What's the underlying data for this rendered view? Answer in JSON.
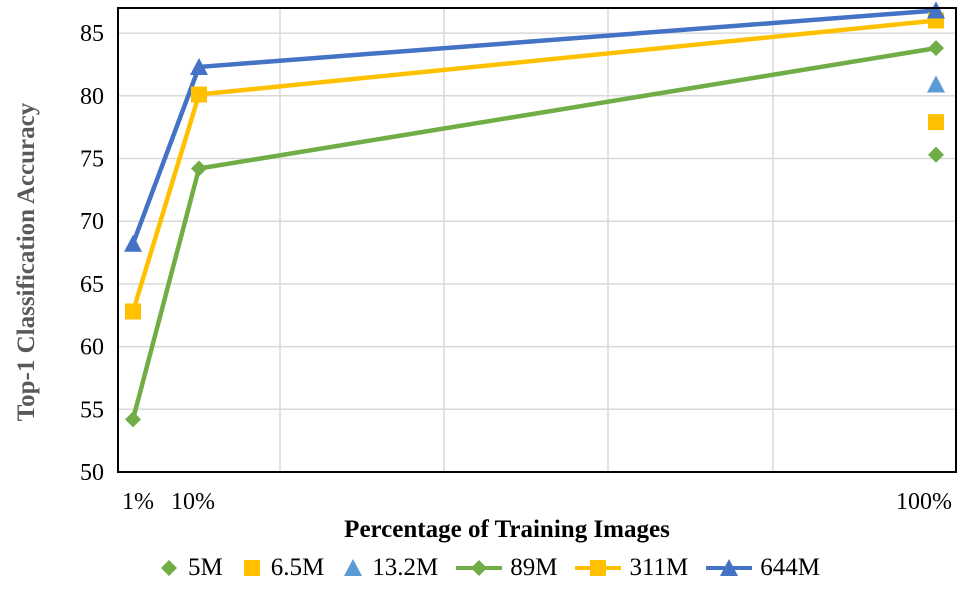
{
  "chart_data": {
    "type": "line",
    "title": "",
    "xlabel": "Percentage of Training Images",
    "ylabel": "Top-1 Classification Accuracy",
    "ylim": [
      50,
      87
    ],
    "yticks": [
      50,
      55,
      60,
      65,
      70,
      75,
      80,
      85
    ],
    "xlim": [
      0,
      100
    ],
    "xticks": [
      1,
      10,
      100
    ],
    "xtick_labels": [
      "1%",
      "10%",
      "100%"
    ],
    "grid": true,
    "legend_position": "bottom",
    "series": [
      {
        "name": "5M",
        "marker": "diamond",
        "line": false,
        "color": "#70AD47",
        "x": [
          100
        ],
        "y": [
          75.3
        ]
      },
      {
        "name": "6.5M",
        "marker": "square",
        "line": false,
        "color": "#FFC000",
        "x": [
          100
        ],
        "y": [
          77.9
        ]
      },
      {
        "name": "13.2M",
        "marker": "triangle",
        "line": false,
        "color": "#5B9BD5",
        "x": [
          100
        ],
        "y": [
          80.9
        ]
      },
      {
        "name": "89M",
        "marker": "diamond",
        "line": true,
        "color": "#70AD47",
        "x": [
          1,
          10,
          100
        ],
        "y": [
          54.2,
          74.2,
          83.8
        ]
      },
      {
        "name": "311M",
        "marker": "square",
        "line": true,
        "color": "#FFC000",
        "x": [
          1,
          10,
          100
        ],
        "y": [
          62.8,
          80.1,
          86.0
        ]
      },
      {
        "name": "644M",
        "marker": "triangle",
        "line": true,
        "color": "#4472C4",
        "x": [
          1,
          10,
          100
        ],
        "y": [
          68.2,
          82.3,
          86.8
        ]
      }
    ]
  }
}
